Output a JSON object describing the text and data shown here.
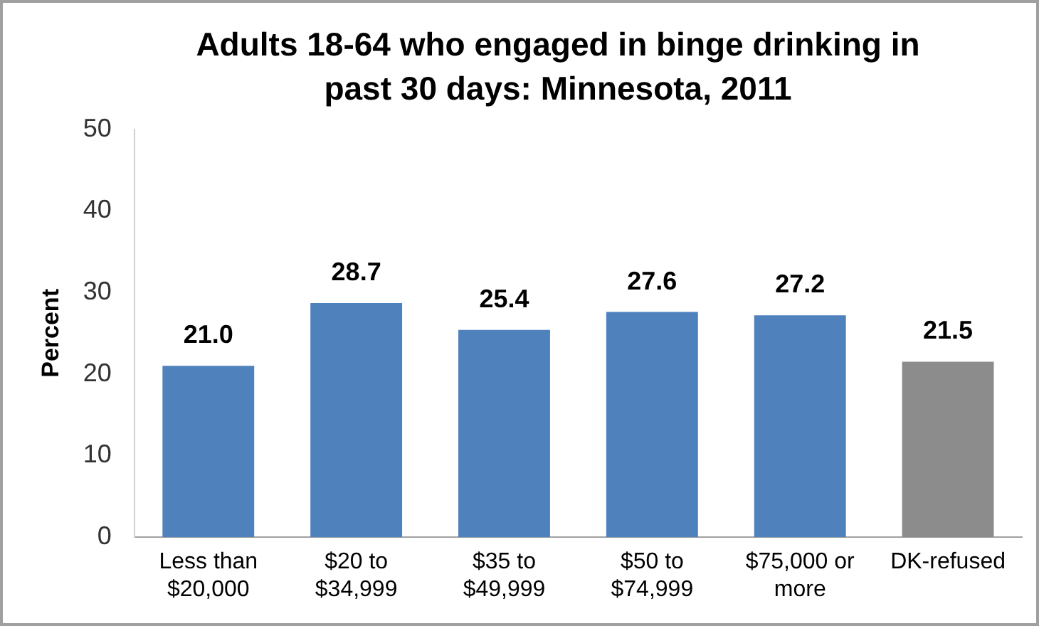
{
  "chart_data": {
    "type": "bar",
    "title": "Adults 18-64 who engaged in binge drinking in past 30 days:  Minnesota, 2011",
    "ylabel": "Percent",
    "categories": [
      "Less than $20,000",
      "$20 to $34,999",
      "$35 to $49,999",
      "$50 to $74,999",
      "$75,000 or more",
      "DK-refused"
    ],
    "values": [
      21.0,
      28.7,
      25.4,
      27.6,
      27.2,
      21.5
    ],
    "colors": [
      "#4f81bd",
      "#4f81bd",
      "#4f81bd",
      "#4f81bd",
      "#4f81bd",
      "#8c8c8c"
    ],
    "ylim": [
      0,
      50
    ],
    "yticks": [
      0,
      10,
      20,
      30,
      40,
      50
    ],
    "grid": false,
    "legend": false,
    "value_labels": [
      "21.0",
      "28.7",
      "25.4",
      "27.6",
      "27.2",
      "21.5"
    ]
  }
}
